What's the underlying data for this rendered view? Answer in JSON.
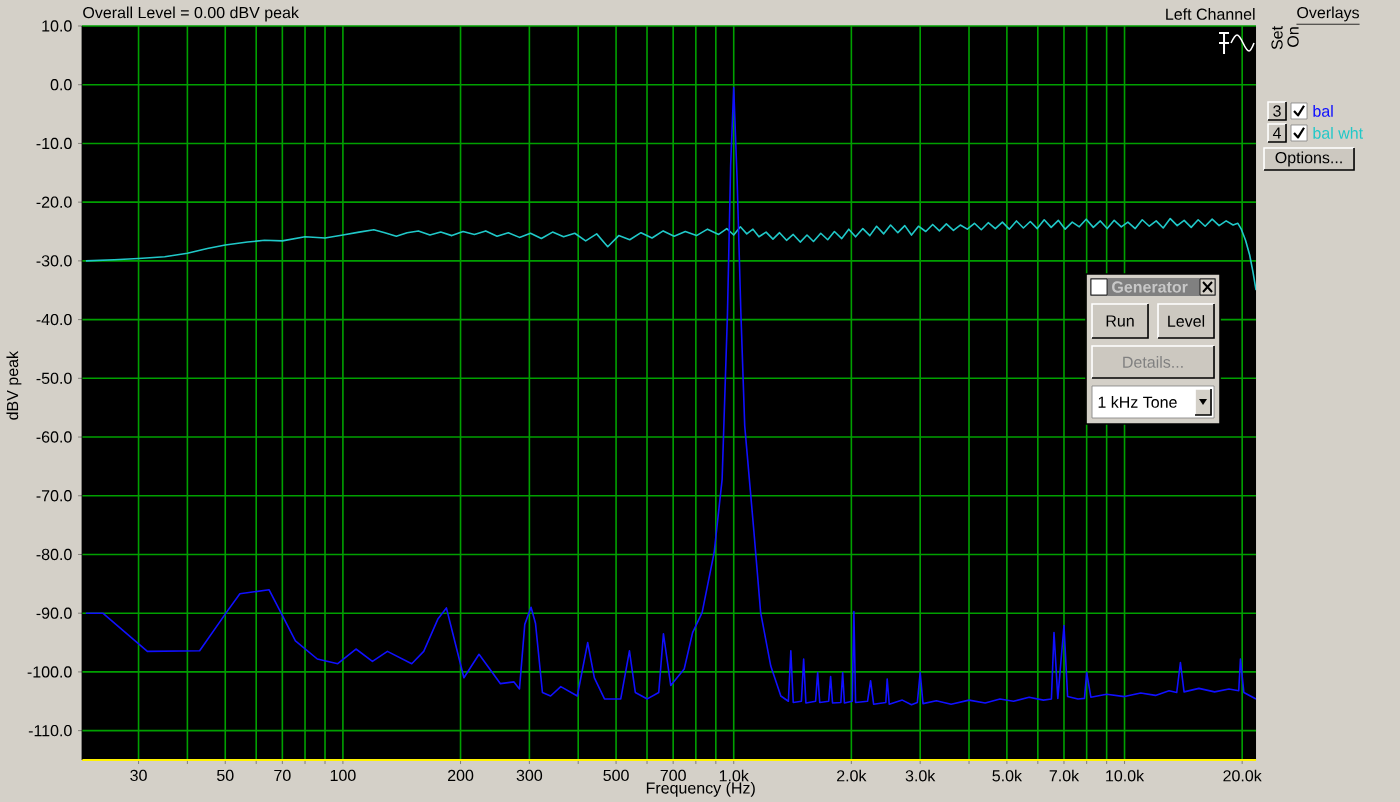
{
  "chart_data": {
    "type": "line",
    "title": "Overall Level = 0.00 dBV peak",
    "subtitle": "Left Channel",
    "xlabel": "Frequency (Hz)",
    "ylabel": "dBV peak",
    "legend_title": "Overlays",
    "log": "x",
    "xlim": [
      21.5,
      21700
    ],
    "ylim": [
      -115,
      10
    ],
    "xticks": [
      30,
      {
        "value": 40,
        "label": null
      },
      50,
      {
        "value": 60,
        "label": null
      },
      70,
      {
        "value": 80,
        "label": null
      },
      {
        "value": 90,
        "label": null
      },
      100,
      200,
      300,
      {
        "value": 400,
        "label": null
      },
      500,
      {
        "value": 600,
        "label": null
      },
      700,
      {
        "value": 800,
        "label": null
      },
      {
        "value": 900,
        "label": null
      },
      {
        "value": 1000,
        "label": "1.0k"
      },
      {
        "value": 2000,
        "label": "2.0k"
      },
      {
        "value": 3000,
        "label": "3.0k"
      },
      {
        "value": 4000,
        "label": null
      },
      {
        "value": 5000,
        "label": "5.0k"
      },
      {
        "value": 6000,
        "label": null
      },
      {
        "value": 7000,
        "label": "7.0k"
      },
      {
        "value": 8000,
        "label": null
      },
      {
        "value": 9000,
        "label": null
      },
      {
        "value": 10000,
        "label": "10.0k"
      },
      {
        "value": 20000,
        "label": "20.0k"
      }
    ],
    "yticks": [
      {
        "value": 10,
        "label": "10.0"
      },
      {
        "value": 0,
        "label": "0.0"
      },
      {
        "value": -10,
        "label": "-10.0"
      },
      {
        "value": -20,
        "label": "-20.0"
      },
      {
        "value": -30,
        "label": "-30.0"
      },
      {
        "value": -40,
        "label": "-40.0"
      },
      {
        "value": -50,
        "label": "-50.0"
      },
      {
        "value": -60,
        "label": "-60.0"
      },
      {
        "value": -70,
        "label": "-70.0"
      },
      {
        "value": -80,
        "label": "-80.0"
      },
      {
        "value": -90,
        "label": "-90.0"
      },
      {
        "value": -100,
        "label": "-100.0"
      },
      {
        "value": -110,
        "label": "-110.0"
      }
    ],
    "grid": true,
    "legend": "right",
    "series": [
      {
        "name": "bal",
        "color": "#1010ff",
        "x": [
          22,
          24.3,
          31.6,
          43,
          50.3,
          54.5,
          64.7,
          69.4,
          75.6,
          86,
          97,
          108,
          119,
          130,
          150,
          161,
          175,
          184,
          204,
          223,
          253,
          274,
          283,
          292,
          303,
          311,
          324,
          340,
          361,
          398,
          423,
          440,
          467,
          514,
          541,
          560,
          601,
          643,
          661,
          690,
          747,
          785,
          830,
          891,
          934,
          964,
          982,
          1000,
          1020,
          1043,
          1067,
          1127,
          1172,
          1244,
          1320,
          1380,
          1400,
          1420,
          1490,
          1510,
          1530,
          1620,
          1640,
          1660,
          1750,
          1770,
          1790,
          1880,
          1900,
          1920,
          2010,
          2030,
          2050,
          2200,
          2240,
          2280,
          2450,
          2470,
          2500,
          2700,
          2850,
          2950,
          3000,
          3050,
          3300,
          3600,
          4000,
          4400,
          4800,
          5200,
          5700,
          6200,
          6500,
          6600,
          6750,
          7000,
          7150,
          7600,
          7900,
          8000,
          8200,
          9000,
          10000,
          11000,
          12000,
          13000,
          13600,
          13900,
          14200,
          15500,
          17000,
          18500,
          19600,
          19800,
          20200,
          21700
        ],
        "values": [
          -90.0,
          -90.0,
          -96.5,
          -96.4,
          -89.9,
          -86.7,
          -86.0,
          -89.9,
          -94.7,
          -97.8,
          -98.6,
          -96.1,
          -98.2,
          -96.5,
          -98.6,
          -96.5,
          -91.0,
          -89.1,
          -101.0,
          -97.0,
          -102.0,
          -101.7,
          -102.9,
          -91.9,
          -89.0,
          -91.7,
          -103.5,
          -104.1,
          -102.5,
          -104.1,
          -95.0,
          -101.0,
          -104.6,
          -104.6,
          -96.4,
          -103.5,
          -104.6,
          -103.5,
          -93.5,
          -102.3,
          -99.5,
          -93.3,
          -89.9,
          -79.7,
          -67.2,
          -38.8,
          -13.8,
          -0.5,
          -16.0,
          -38.8,
          -58.1,
          -76.3,
          -89.9,
          -99.0,
          -104.1,
          -105.0,
          -96.4,
          -105.2,
          -105.0,
          -97.8,
          -105.3,
          -105.0,
          -100.1,
          -105.2,
          -105.0,
          -100.8,
          -105.3,
          -105.2,
          -100.1,
          -105.3,
          -105.0,
          -89.7,
          -105.2,
          -105.0,
          -101.5,
          -105.5,
          -105.2,
          -101.2,
          -105.5,
          -104.8,
          -105.6,
          -105.2,
          -100.1,
          -105.4,
          -104.9,
          -105.5,
          -104.8,
          -105.3,
          -104.6,
          -105.0,
          -104.3,
          -104.8,
          -104.6,
          -93.3,
          -104.5,
          -92.1,
          -104.2,
          -104.6,
          -104.5,
          -100.1,
          -104.3,
          -103.8,
          -104.2,
          -103.6,
          -104.0,
          -103.2,
          -103.5,
          -98.4,
          -103.4,
          -102.8,
          -103.4,
          -102.9,
          -103.2,
          -97.8,
          -103.5,
          -104.6
        ]
      },
      {
        "name": "bal wht",
        "color": "#20c8c8",
        "x": [
          22,
          26,
          30,
          35,
          40,
          45,
          50,
          57,
          63,
          70,
          80,
          90,
          100,
          110,
          120,
          128,
          137,
          146,
          156,
          167,
          178,
          190,
          203,
          217,
          232,
          248,
          265,
          283,
          302,
          322,
          344,
          367,
          392,
          418,
          446,
          476,
          508,
          542,
          579,
          618,
          660,
          704,
          752,
          803,
          857,
          915,
          960,
          1000,
          1040,
          1080,
          1120,
          1160,
          1210,
          1260,
          1310,
          1365,
          1420,
          1480,
          1540,
          1600,
          1670,
          1740,
          1810,
          1890,
          1970,
          2050,
          2140,
          2230,
          2320,
          2420,
          2520,
          2630,
          2740,
          2850,
          2970,
          3100,
          3230,
          3360,
          3500,
          3650,
          3800,
          3960,
          4130,
          4300,
          4480,
          4670,
          4870,
          5070,
          5290,
          5510,
          5740,
          5980,
          6230,
          6490,
          6770,
          7050,
          7350,
          7660,
          7980,
          8320,
          8670,
          9030,
          9410,
          9810,
          10200,
          10650,
          11100,
          11570,
          12050,
          12560,
          13090,
          13640,
          14210,
          14810,
          15430,
          16080,
          16760,
          17460,
          18200,
          18960,
          19500,
          19900,
          20400,
          20900,
          21300,
          21700
        ],
        "values": [
          -30.0,
          -29.8,
          -29.6,
          -29.3,
          -28.7,
          -27.9,
          -27.3,
          -26.8,
          -26.5,
          -26.6,
          -25.9,
          -26.1,
          -25.6,
          -25.1,
          -24.7,
          -25.2,
          -25.8,
          -25.2,
          -24.9,
          -25.6,
          -25.1,
          -25.7,
          -25.0,
          -25.5,
          -24.9,
          -25.8,
          -25.2,
          -26.0,
          -25.3,
          -26.2,
          -25.1,
          -25.9,
          -25.3,
          -26.6,
          -25.4,
          -27.6,
          -25.7,
          -26.4,
          -25.2,
          -26.1,
          -24.9,
          -25.8,
          -25.0,
          -25.7,
          -24.6,
          -25.5,
          -24.5,
          -25.6,
          -24.2,
          -25.4,
          -24.6,
          -25.9,
          -25.1,
          -26.3,
          -25.2,
          -26.5,
          -25.5,
          -26.8,
          -25.6,
          -26.7,
          -25.3,
          -26.4,
          -25.0,
          -26.2,
          -24.6,
          -25.9,
          -24.5,
          -25.7,
          -24.1,
          -25.4,
          -23.9,
          -25.2,
          -24.0,
          -25.6,
          -24.1,
          -25.0,
          -23.8,
          -24.9,
          -23.7,
          -24.8,
          -23.9,
          -24.6,
          -23.6,
          -24.7,
          -23.5,
          -24.5,
          -23.4,
          -24.6,
          -23.2,
          -24.4,
          -23.3,
          -24.5,
          -23.0,
          -24.3,
          -23.1,
          -24.6,
          -23.4,
          -24.2,
          -22.9,
          -24.3,
          -23.2,
          -24.5,
          -23.1,
          -24.2,
          -23.4,
          -24.5,
          -23.0,
          -24.1,
          -23.2,
          -24.4,
          -22.8,
          -24.0,
          -23.1,
          -24.3,
          -23.0,
          -24.1,
          -22.9,
          -24.0,
          -23.2,
          -23.9,
          -23.6,
          -24.6,
          -26.5,
          -29.0,
          -31.8,
          -35.0
        ]
      }
    ],
    "annotations": [
      "Set",
      "On",
      "3",
      "4",
      "Options...",
      "Generator",
      "Run",
      "Level",
      "Details...",
      "1 kHz Tone"
    ]
  }
}
